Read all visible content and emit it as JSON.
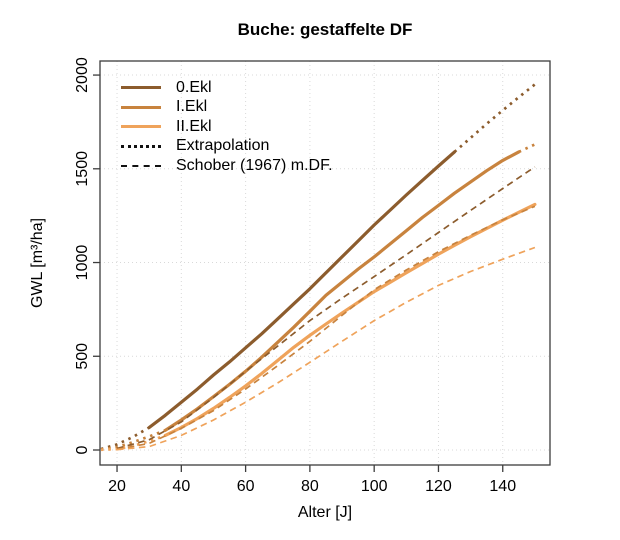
{
  "legend": {
    "items": [
      {
        "label": "0.Ekl",
        "style": "solid",
        "color": "#8C5C2D"
      },
      {
        "label": "I.Ekl",
        "style": "solid",
        "color": "#C8833E"
      },
      {
        "label": "II.Ekl",
        "style": "solid",
        "color": "#EFA35B"
      },
      {
        "label": "Extrapolation",
        "style": "dotted",
        "color": "#111111"
      },
      {
        "label": "Schober (1967) m.DF.",
        "style": "dashed",
        "color": "#111111"
      }
    ]
  },
  "chart_data": {
    "type": "line",
    "title": "Buche: gestaffelte DF",
    "xlabel": "Alter [J]",
    "ylabel": "GWL [m³/ha]",
    "xlim": [
      14.7,
      154.7
    ],
    "ylim": [
      -80,
      2075
    ],
    "xticks": [
      20,
      40,
      60,
      80,
      100,
      120,
      140
    ],
    "yticks": [
      0,
      500,
      1000,
      1500,
      2000
    ],
    "grid": true,
    "grid_color": "#d9d9d9",
    "box_color": "#3c3c3c",
    "legend_position": "top-left",
    "series": [
      {
        "name": "0.Ekl",
        "color": "#8C5C2D",
        "solid": {
          "x": [
            30,
            35,
            40,
            45,
            50,
            55,
            60,
            65,
            70,
            75,
            80,
            85,
            90,
            95,
            100,
            105,
            110,
            115,
            120,
            125
          ],
          "y": [
            120,
            185,
            255,
            325,
            400,
            470,
            545,
            620,
            700,
            780,
            860,
            945,
            1030,
            1115,
            1200,
            1280,
            1360,
            1438,
            1515,
            1590
          ]
        },
        "extrapolation_young": {
          "x": [
            15,
            20,
            25,
            30
          ],
          "y": [
            5,
            30,
            70,
            120
          ]
        },
        "extrapolation_old": {
          "x": [
            125,
            130,
            135,
            140,
            145,
            150
          ],
          "y": [
            1590,
            1665,
            1740,
            1812,
            1882,
            1950
          ]
        },
        "schober": {
          "x": [
            20,
            30,
            40,
            50,
            60,
            70,
            80,
            90,
            100,
            110,
            120,
            130,
            140,
            150
          ],
          "y": [
            8,
            55,
            150,
            280,
            420,
            555,
            690,
            810,
            925,
            1042,
            1160,
            1278,
            1395,
            1510
          ]
        }
      },
      {
        "name": "I.Ekl",
        "color": "#C8833E",
        "solid": {
          "x": [
            35,
            40,
            45,
            50,
            55,
            60,
            65,
            70,
            75,
            80,
            85,
            90,
            95,
            100,
            105,
            110,
            115,
            120,
            125,
            130,
            135,
            140,
            145
          ],
          "y": [
            105,
            160,
            220,
            285,
            350,
            420,
            495,
            575,
            655,
            740,
            825,
            895,
            965,
            1030,
            1100,
            1170,
            1240,
            1305,
            1370,
            1430,
            1490,
            1545,
            1590
          ]
        },
        "extrapolation_young": {
          "x": [
            15,
            20,
            25,
            30,
            35
          ],
          "y": [
            2,
            15,
            42,
            72,
            105
          ]
        },
        "extrapolation_old": {
          "x": [
            145,
            150
          ],
          "y": [
            1590,
            1630
          ]
        },
        "schober": {
          "x": [
            20,
            30,
            40,
            50,
            60,
            70,
            80,
            90,
            100,
            110,
            120,
            130,
            140,
            150
          ],
          "y": [
            4,
            35,
            115,
            210,
            325,
            450,
            580,
            718,
            855,
            960,
            1058,
            1145,
            1228,
            1300
          ]
        }
      },
      {
        "name": "II.Ekl",
        "color": "#EFA35B",
        "solid": {
          "x": [
            35,
            40,
            45,
            50,
            55,
            60,
            65,
            70,
            75,
            80,
            85,
            90,
            95,
            100,
            105,
            110,
            115,
            120,
            125,
            130,
            135,
            140,
            145,
            150
          ],
          "y": [
            78,
            120,
            168,
            222,
            280,
            342,
            408,
            478,
            548,
            612,
            672,
            730,
            788,
            845,
            895,
            945,
            995,
            1045,
            1092,
            1138,
            1182,
            1226,
            1268,
            1310
          ]
        },
        "extrapolation_young": {
          "x": [
            15,
            20,
            25,
            30,
            35
          ],
          "y": [
            1,
            5,
            22,
            47,
            78
          ]
        },
        "extrapolation_old": {
          "x": [],
          "y": []
        },
        "schober": {
          "x": [
            20,
            30,
            40,
            50,
            60,
            70,
            80,
            90,
            100,
            110,
            120,
            130,
            140,
            150
          ],
          "y": [
            2,
            18,
            78,
            160,
            255,
            358,
            468,
            580,
            690,
            788,
            878,
            952,
            1018,
            1080
          ]
        }
      }
    ]
  }
}
